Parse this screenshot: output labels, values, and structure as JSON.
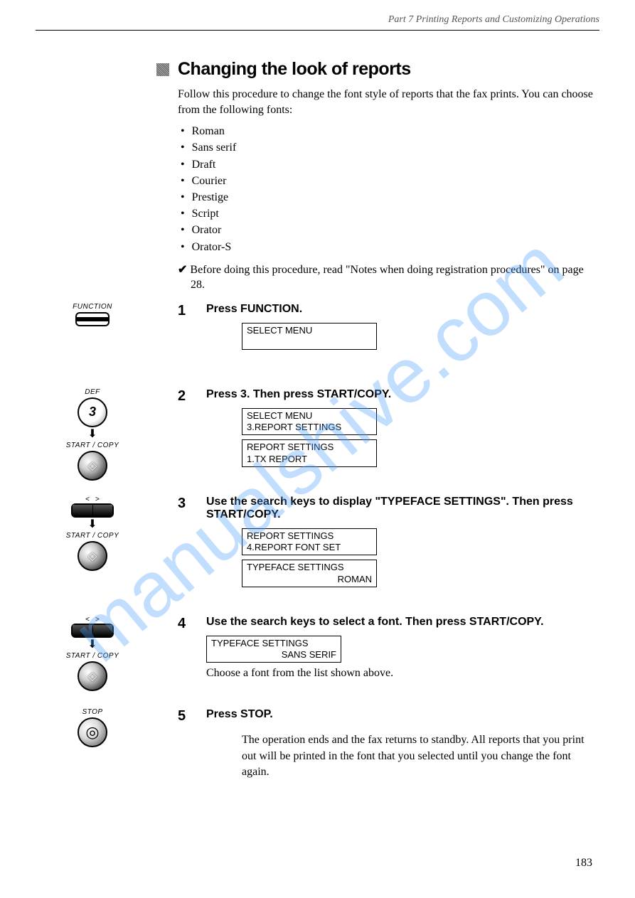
{
  "header": "Part 7   Printing Reports and Customizing Operations",
  "title": "Changing the look of reports",
  "intro": "Follow this procedure to change the font style of reports that the fax prints. You can choose from the following fonts:",
  "fonts": [
    "Roman",
    "Sans serif",
    "Draft",
    "Courier",
    "Prestige",
    "Script",
    "Orator",
    "Orator-S"
  ],
  "checknote": "Before doing this procedure, read \"Notes when doing registration procedures\" on page 28.",
  "steps": {
    "s1": {
      "num": "1",
      "title": "Press FUNCTION.",
      "display1_l1": "SELECT MENU"
    },
    "s2": {
      "num": "2",
      "title": "Press 3. Then press START/COPY.",
      "display1_l1": "SELECT MENU",
      "display1_l2": " 3.REPORT SETTINGS",
      "display2_l1": "REPORT SETTINGS",
      "display2_l2": " 1.TX REPORT"
    },
    "s3": {
      "num": "3",
      "title": "Use the search keys to display \"TYPEFACE SETTINGS\". Then press START/COPY.",
      "display1_l1": "REPORT SETTINGS",
      "display1_l2": " 4.REPORT FONT SET",
      "display2_l1": "TYPEFACE SETTINGS",
      "display2_l2": "ROMAN"
    },
    "s4": {
      "num": "4",
      "title": "Use the search keys to select a font. Then press START/COPY.",
      "display1_l1": "TYPEFACE SETTINGS",
      "display1_l2": "SANS SERIF",
      "note": "Choose a font from the list shown above."
    },
    "s5": {
      "num": "5",
      "title": "Press STOP.",
      "final": "The operation ends and the fax returns to standby. All reports that you print out will be printed in the font that you selected until you change the font again."
    }
  },
  "labels": {
    "function": "FUNCTION",
    "def": "DEF",
    "three": "3",
    "startcopy": "START / COPY",
    "stop": "STOP"
  },
  "pagenum": "183",
  "watermark": "manualshive.com"
}
